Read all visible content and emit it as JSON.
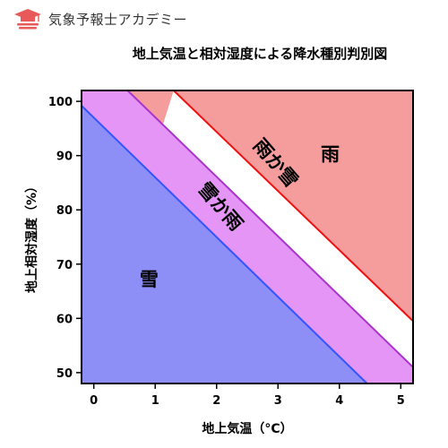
{
  "brand": {
    "name": "気象予報士アカデミー",
    "logo_icon": "graduation-cap-icon",
    "logo_color": "#e85a5a"
  },
  "chart_data": {
    "type": "area",
    "title": "地上気温と相対湿度による降水種別判別図",
    "xlabel": "地上気温（°C）",
    "ylabel": "地上相対湿度（%）",
    "xlim": [
      -0.2,
      5.2
    ],
    "ylim": [
      48,
      102
    ],
    "xticks": [
      0,
      1,
      2,
      3,
      4,
      5
    ],
    "yticks": [
      50,
      60,
      70,
      80,
      90,
      100
    ],
    "boundaries": [
      {
        "name": "snow-sleet-boundary",
        "color": "#3355ff",
        "points": [
          [
            -0.2,
            99.2
          ],
          [
            4.45,
            48
          ]
        ]
      },
      {
        "name": "sleet-rain-boundary",
        "color": "#aa33cc",
        "points": [
          [
            0.55,
            102
          ],
          [
            5.2,
            51
          ]
        ]
      },
      {
        "name": "rain-boundary",
        "color": "#ee1111",
        "points": [
          [
            1.3,
            102
          ],
          [
            5.2,
            59.5
          ]
        ]
      }
    ],
    "regions": [
      {
        "label": "雪",
        "color": "#8e8ef7",
        "label_at": [
          0.9,
          67
        ]
      },
      {
        "label": "雪か雨",
        "color": "#e495f6",
        "label_at": [
          2.05,
          80.5
        ],
        "rotation": 49
      },
      {
        "label": "雨か雪",
        "color": "#f59c9c",
        "label_at": [
          2.95,
          88.5
        ],
        "rotation": 49
      },
      {
        "label": "雨",
        "color": "#ffffff",
        "label_at": [
          3.85,
          90
        ]
      }
    ],
    "grid": false
  }
}
